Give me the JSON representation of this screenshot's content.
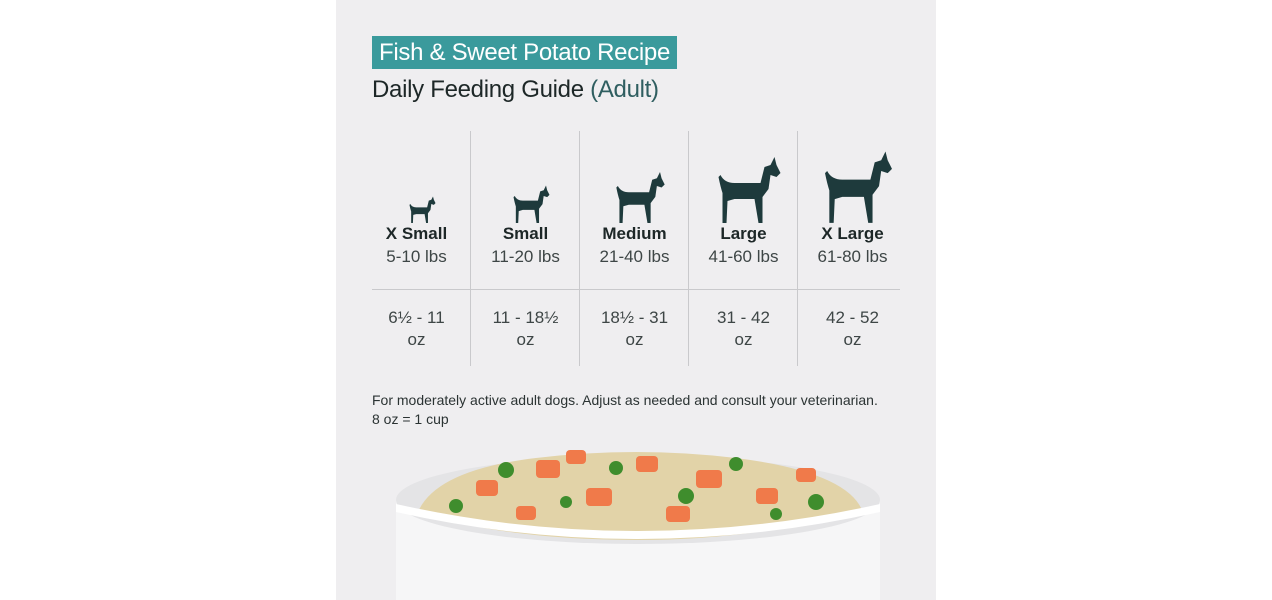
{
  "header": {
    "title": "Fish & Sweet Potato Recipe",
    "subtitle": "Daily Feeding Guide",
    "subtitle_note": "(Adult)"
  },
  "table": {
    "columns": [
      {
        "name": "X Small",
        "range": "5-10 lbs",
        "amount": "6½ - 11",
        "unit": "oz"
      },
      {
        "name": "Small",
        "range": "11-20 lbs",
        "amount": "11 - 18½",
        "unit": "oz"
      },
      {
        "name": "Medium",
        "range": "21-40 lbs",
        "amount": "18½ - 31",
        "unit": "oz"
      },
      {
        "name": "Large",
        "range": "41-60 lbs",
        "amount": "31 - 42",
        "unit": "oz"
      },
      {
        "name": "X Large",
        "range": "61-80 lbs",
        "amount": "42 - 52",
        "unit": "oz"
      }
    ]
  },
  "footnote": {
    "lines": [
      "For moderately active adult dogs. Adjust as needed and consult your veterinarian.",
      "8 oz = 1 cup"
    ]
  }
}
